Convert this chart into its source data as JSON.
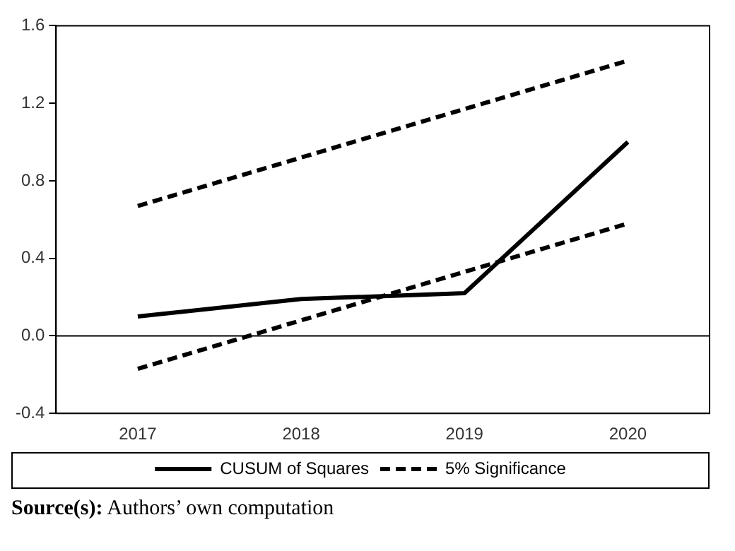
{
  "chart_data": {
    "type": "line",
    "categories": [
      "2017",
      "2018",
      "2019",
      "2020"
    ],
    "series": [
      {
        "name": "CUSUM of Squares",
        "color": "#000000",
        "values": [
          0.1,
          0.19,
          0.22,
          1.0
        ],
        "line_style": "solid"
      },
      {
        "name": "5% Significance",
        "color": "#000000",
        "values": [
          0.67,
          0.92,
          1.17,
          1.42
        ],
        "line_style": "dashed"
      },
      {
        "color": "#000000",
        "values": [
          -0.17,
          0.08,
          0.33,
          0.58
        ],
        "line_style": "dashed"
      }
    ],
    "ylim": [
      -0.4,
      1.6
    ],
    "yticks": [
      {
        "value": -0.4,
        "label": "-0.4"
      },
      {
        "value": 0,
        "label": "0.0"
      },
      {
        "value": 0.4,
        "label": "0.4"
      },
      {
        "value": 0.8,
        "label": "0.8"
      },
      {
        "value": 1.2,
        "label": "1.2"
      },
      {
        "value": 1.6,
        "label": "1.6"
      }
    ],
    "ref_lines": [
      {
        "axis": "y",
        "value": 0,
        "color": "#000000"
      }
    ],
    "grid": false,
    "legend": "bottom",
    "marker": "none",
    "annotations": [
      "Source(s): Authors’ own computation"
    ]
  }
}
